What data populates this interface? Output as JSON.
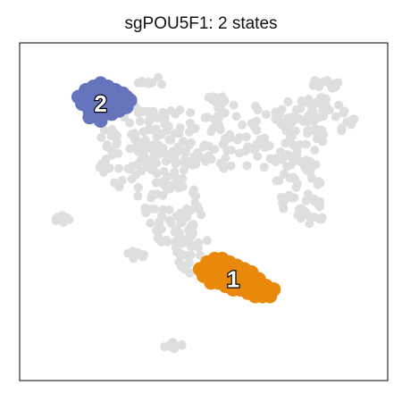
{
  "chart_data": {
    "type": "scatter",
    "title": "sgPOU5F1: 2 states",
    "xlabel": "",
    "ylabel": "",
    "xlim": [
      0,
      100
    ],
    "ylim": [
      0,
      100
    ],
    "grid": false,
    "colors": {
      "background_cells": "#dedede",
      "state_1": "#e8890c",
      "state_2": "#6574bc"
    },
    "series": [
      {
        "label": "2",
        "center": [
          22,
          82
        ],
        "points": [
          [
            16,
            84
          ],
          [
            18,
            86
          ],
          [
            20,
            87
          ],
          [
            22,
            88
          ],
          [
            24,
            87
          ],
          [
            26,
            86
          ],
          [
            28,
            85
          ],
          [
            30,
            83
          ],
          [
            29,
            81
          ],
          [
            27,
            80
          ],
          [
            25,
            79
          ],
          [
            23,
            79
          ],
          [
            21,
            79
          ],
          [
            19,
            80
          ],
          [
            17,
            82
          ],
          [
            20,
            83
          ],
          [
            24,
            83
          ],
          [
            27,
            83
          ],
          [
            22,
            85
          ],
          [
            25,
            85
          ],
          [
            18,
            84
          ],
          [
            21,
            81
          ],
          [
            26,
            81
          ],
          [
            29,
            84
          ],
          [
            19,
            78
          ],
          [
            22,
            77
          ]
        ]
      },
      {
        "label": "1",
        "center": [
          58,
          30
        ],
        "points": [
          [
            49,
            33
          ],
          [
            51,
            35
          ],
          [
            53,
            36
          ],
          [
            55,
            36
          ],
          [
            57,
            35
          ],
          [
            59,
            34
          ],
          [
            61,
            33
          ],
          [
            63,
            32
          ],
          [
            65,
            30
          ],
          [
            67,
            28
          ],
          [
            69,
            27
          ],
          [
            68,
            25
          ],
          [
            66,
            25
          ],
          [
            64,
            25
          ],
          [
            62,
            26
          ],
          [
            60,
            27
          ],
          [
            58,
            27
          ],
          [
            56,
            28
          ],
          [
            54,
            29
          ],
          [
            52,
            29
          ],
          [
            50,
            31
          ],
          [
            54,
            32
          ],
          [
            57,
            31
          ],
          [
            60,
            30
          ],
          [
            63,
            29
          ],
          [
            66,
            27
          ],
          [
            55,
            34
          ],
          [
            52,
            32
          ],
          [
            62,
            31
          ],
          [
            58,
            33
          ]
        ]
      }
    ],
    "background_clusters": [
      {
        "cx": 58,
        "cy": 72,
        "rx": 28,
        "ry": 10,
        "n": 140
      },
      {
        "cx": 35,
        "cy": 68,
        "rx": 15,
        "ry": 14,
        "n": 110
      },
      {
        "cx": 42,
        "cy": 50,
        "rx": 8,
        "ry": 10,
        "n": 60
      },
      {
        "cx": 47,
        "cy": 38,
        "rx": 5,
        "ry": 7,
        "n": 35
      },
      {
        "cx": 76,
        "cy": 58,
        "rx": 7,
        "ry": 10,
        "n": 45
      },
      {
        "cx": 80,
        "cy": 78,
        "rx": 11,
        "ry": 6,
        "n": 55
      },
      {
        "cx": 79,
        "cy": 49,
        "rx": 5,
        "ry": 3,
        "n": 14
      },
      {
        "cx": 83,
        "cy": 88,
        "rx": 4,
        "ry": 2,
        "n": 12
      },
      {
        "cx": 10,
        "cy": 48,
        "rx": 4,
        "ry": 1.5,
        "n": 10
      },
      {
        "cx": 32,
        "cy": 37,
        "rx": 3,
        "ry": 1.5,
        "n": 8
      },
      {
        "cx": 42,
        "cy": 10,
        "rx": 3,
        "ry": 1.5,
        "n": 8
      },
      {
        "cx": 36,
        "cy": 88,
        "rx": 4,
        "ry": 2,
        "n": 10
      },
      {
        "cx": 54,
        "cy": 84,
        "rx": 3,
        "ry": 2,
        "n": 8
      }
    ]
  }
}
